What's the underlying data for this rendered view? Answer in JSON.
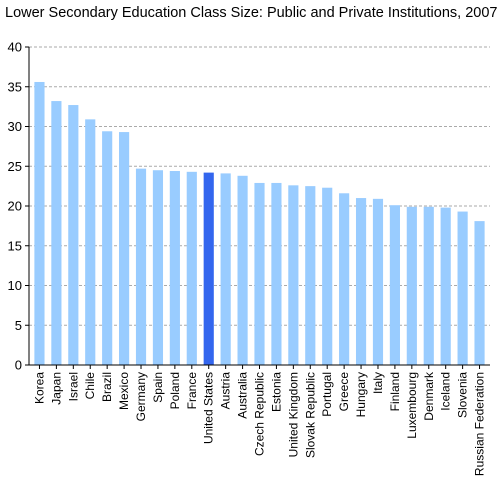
{
  "chart_data": {
    "type": "bar",
    "title": "Lower Secondary Education Class Size: Public and Private Institutions, 2007",
    "xlabel": "",
    "ylabel": "",
    "ylim": [
      0,
      40
    ],
    "yticks": [
      0,
      5,
      10,
      15,
      20,
      25,
      30,
      35,
      40
    ],
    "grid": true,
    "legend": "none",
    "colors": {
      "bar": "#99ccff",
      "highlight": "#3366ee",
      "grid": "#aaaaaa",
      "axis": "#000000"
    },
    "highlight_category": "United States",
    "categories": [
      "Korea",
      "Japan",
      "Israel",
      "Chile",
      "Brazil",
      "Mexico",
      "Germany",
      "Spain",
      "Poland",
      "France",
      "United States",
      "Austria",
      "Australia",
      "Czech Republic",
      "Estonia",
      "United Kingdom",
      "Slovak Republic",
      "Portugal",
      "Greece",
      "Hungary",
      "Italy",
      "Finland",
      "Luxembourg",
      "Denmark",
      "Iceland",
      "Slovenia",
      "Russian Federation"
    ],
    "values": [
      35.6,
      33.2,
      32.7,
      30.9,
      29.4,
      29.3,
      24.7,
      24.5,
      24.4,
      24.3,
      24.2,
      24.1,
      23.8,
      22.9,
      22.9,
      22.6,
      22.5,
      22.3,
      21.6,
      21.0,
      20.9,
      20.1,
      19.9,
      19.9,
      19.8,
      19.3,
      18.1
    ]
  }
}
